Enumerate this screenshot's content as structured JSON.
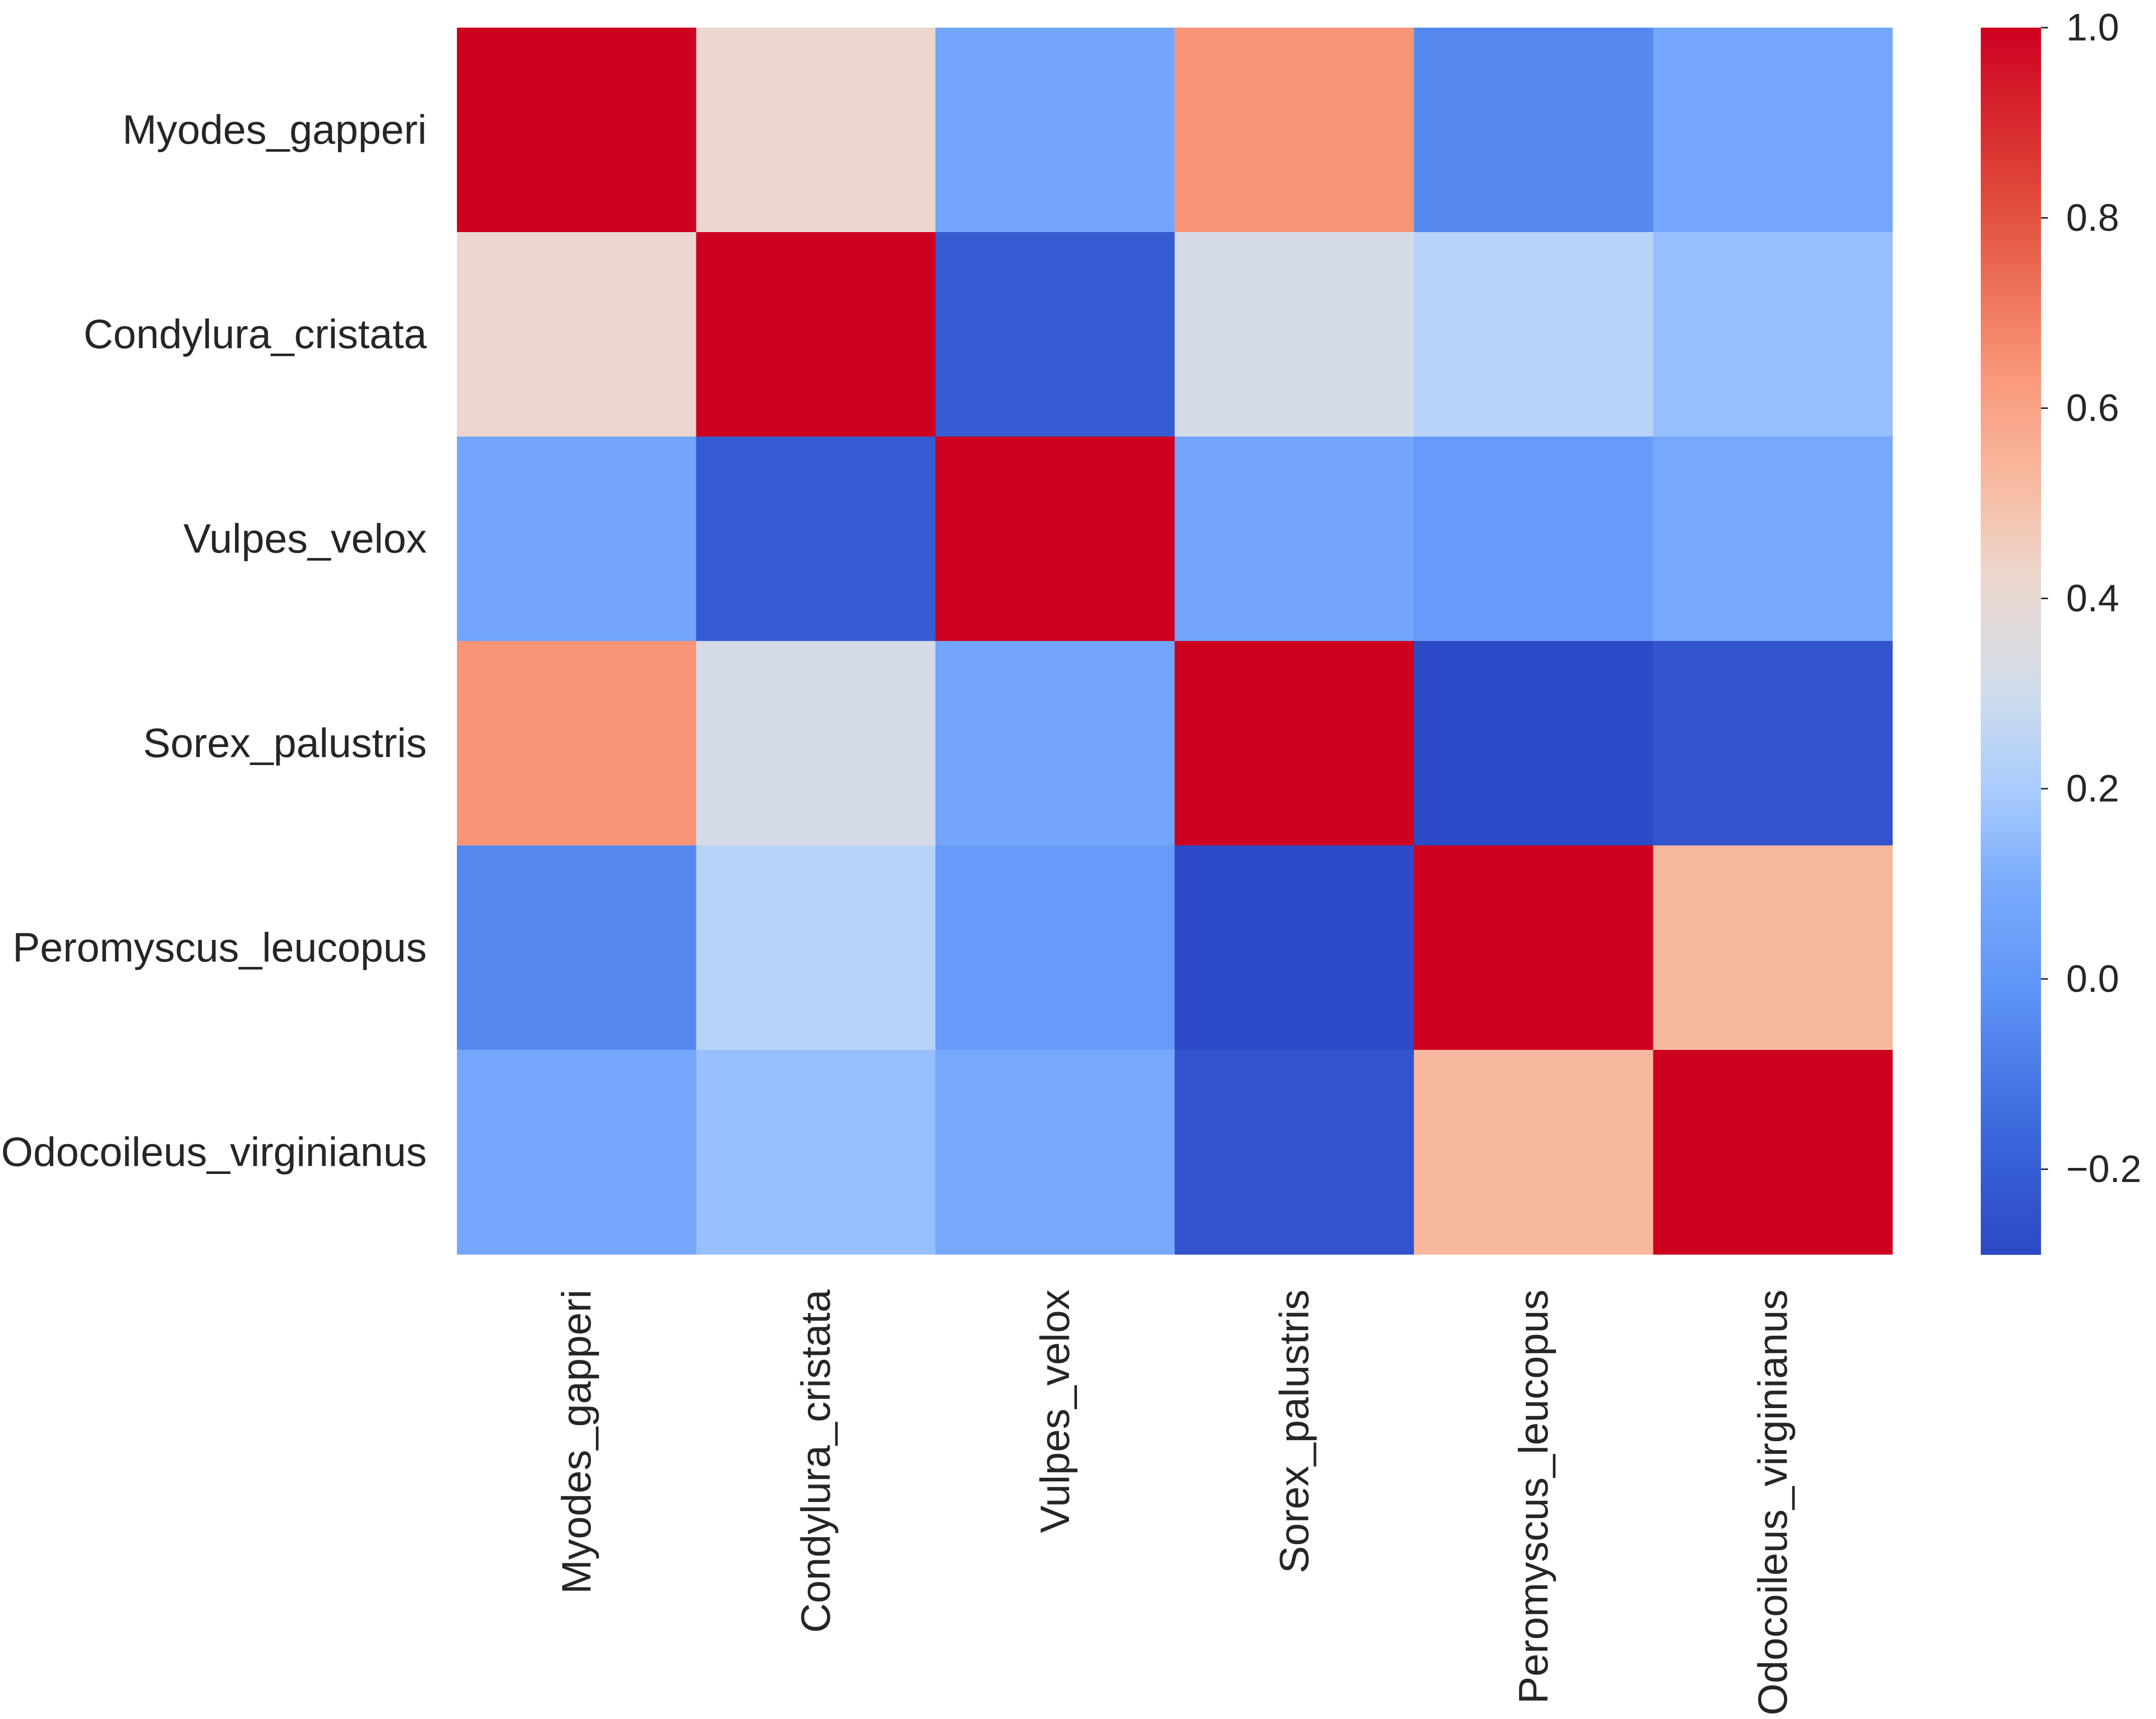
{
  "chart_data": {
    "type": "heatmap",
    "title": "",
    "xlabel": "",
    "ylabel": "",
    "labels": [
      "Myodes_gapperi",
      "Condylura_cristata",
      "Vulpes_velox",
      "Sorex_palustris",
      "Peromyscus_leucopus",
      "Odocoileus_virginianus"
    ],
    "matrix": [
      [
        1.0,
        0.42,
        0.07,
        0.64,
        -0.05,
        0.08
      ],
      [
        0.42,
        1.0,
        -0.21,
        0.32,
        0.24,
        0.16
      ],
      [
        0.07,
        -0.21,
        1.0,
        0.07,
        0.02,
        0.09
      ],
      [
        0.64,
        0.32,
        0.07,
        1.0,
        -0.28,
        -0.24
      ],
      [
        -0.05,
        0.24,
        0.02,
        -0.28,
        1.0,
        0.53
      ],
      [
        0.08,
        0.16,
        0.09,
        -0.24,
        0.53,
        1.0
      ]
    ],
    "colorbar": {
      "colormap": "coolwarm",
      "vmin": -0.29,
      "vmax": 1.0,
      "ticks": [
        -0.2,
        0.0,
        0.2,
        0.4,
        0.6,
        0.8,
        1.0
      ],
      "tick_labels": [
        "−0.2",
        "0.0",
        "0.2",
        "0.4",
        "0.6",
        "0.8",
        "1.0"
      ]
    }
  }
}
